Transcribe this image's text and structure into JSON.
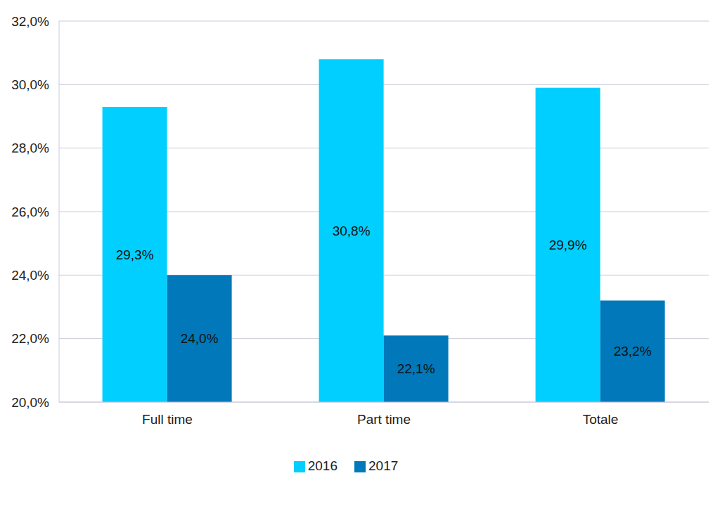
{
  "chart_data": {
    "type": "bar",
    "categories": [
      "Full time",
      "Part time",
      "Totale"
    ],
    "series": [
      {
        "name": "2016",
        "color": "#00cfff",
        "values": [
          29.3,
          30.8,
          29.9
        ],
        "value_labels": [
          "29,3%",
          "30,8%",
          "29,9%"
        ]
      },
      {
        "name": "2017",
        "color": "#0078ba",
        "values": [
          24.0,
          22.1,
          23.2
        ],
        "value_labels": [
          "24,0%",
          "22,1%",
          "23,2%"
        ]
      }
    ],
    "ylim": [
      20,
      32
    ],
    "yticks": [
      {
        "value": 20,
        "label": "20,0%"
      },
      {
        "value": 22,
        "label": "22,0%"
      },
      {
        "value": 24,
        "label": "24,0%"
      },
      {
        "value": 26,
        "label": "26,0%"
      },
      {
        "value": 28,
        "label": "28,0%"
      },
      {
        "value": 30,
        "label": "30,0%"
      },
      {
        "value": 32,
        "label": "32,0%"
      }
    ],
    "grid": true,
    "legend": "bottom",
    "data_labels": true
  }
}
